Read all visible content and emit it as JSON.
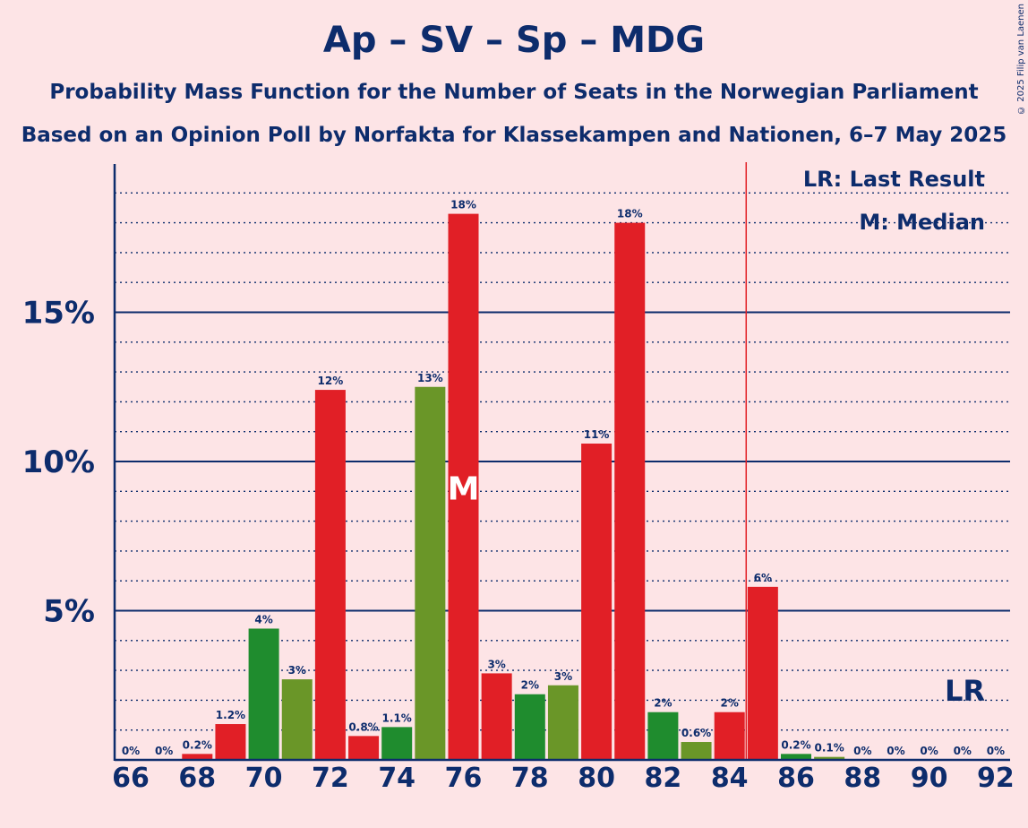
{
  "title": "Ap – SV – Sp – MDG",
  "subtitle1": "Probability Mass Function for the Number of Seats in the Norwegian Parliament",
  "subtitle2": "Based on an Opinion Poll by Norfakta for Klassekampen and Nationen, 6–7 May 2025",
  "copyright": "© 2025 Filip van Laenen",
  "legend": {
    "lr": "LR: Last Result",
    "m": "M: Median"
  },
  "lr_label": "LR",
  "median_label": "M",
  "colors": {
    "red": "#e11f26",
    "green": "#1f8c2e",
    "olive": "#6a9628",
    "axis": "#0d2c6c",
    "lastresult": "#e11f26"
  },
  "chart_data": {
    "type": "bar",
    "x": [
      66,
      67,
      68,
      69,
      70,
      71,
      72,
      73,
      74,
      75,
      76,
      77,
      78,
      79,
      80,
      81,
      82,
      83,
      84,
      85,
      86,
      87,
      88,
      89,
      90,
      91,
      92
    ],
    "values": [
      0,
      0,
      0.2,
      1.2,
      4.4,
      2.7,
      12.4,
      0.8,
      1.1,
      12.5,
      18.3,
      2.9,
      2.2,
      2.5,
      10.6,
      18.0,
      1.6,
      0.6,
      1.6,
      5.8,
      0.2,
      0.1,
      0,
      0,
      0,
      0,
      0
    ],
    "labels": [
      "0%",
      "0%",
      "0.2%",
      "1.2%",
      "4%",
      "3%",
      "12%",
      "0.8%",
      "1.1%",
      "13%",
      "18%",
      "3%",
      "2%",
      "3%",
      "11%",
      "18%",
      "2%",
      "0.6%",
      "2%",
      "6%",
      "0.2%",
      "0.1%",
      "0%",
      "0%",
      "0%",
      "0%",
      "0%"
    ],
    "bar_colors": [
      "red",
      "red",
      "red",
      "red",
      "green",
      "olive",
      "red",
      "red",
      "green",
      "olive",
      "red",
      "red",
      "green",
      "olive",
      "red",
      "red",
      "green",
      "olive",
      "red",
      "red",
      "green",
      "olive",
      "red",
      "red",
      "green",
      "olive",
      "red"
    ],
    "xticks": [
      66,
      68,
      70,
      72,
      74,
      76,
      78,
      80,
      82,
      84,
      86,
      88,
      90,
      92
    ],
    "yticks": [
      {
        "value": 5,
        "label": "5%"
      },
      {
        "value": 10,
        "label": "10%"
      },
      {
        "value": 15,
        "label": "15%"
      }
    ],
    "ylim": [
      0,
      20
    ],
    "median_seat": 76,
    "last_result_seat": 84.5,
    "xlabel": "",
    "ylabel": ""
  }
}
